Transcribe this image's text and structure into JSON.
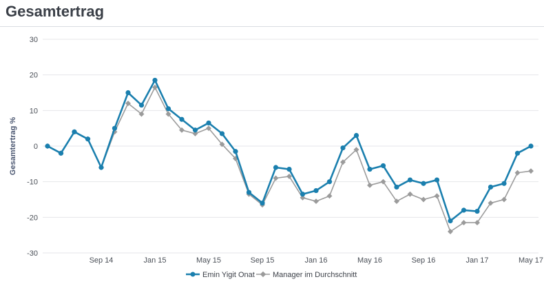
{
  "page": {
    "title": "Gesamtertrag"
  },
  "colors": {
    "primary": "#1a7fae",
    "secondary": "#9b9b9b",
    "grid": "#e4e6ea"
  },
  "chart_data": {
    "type": "line",
    "title": "Gesamtertrag",
    "xlabel": "",
    "ylabel": "Gesamtertrag %",
    "ylim": [
      -30,
      30
    ],
    "yticks": [
      30,
      20,
      10,
      0,
      -10,
      -20,
      -30
    ],
    "x_tick_labels": [
      "Sep 14",
      "Jan 15",
      "May 15",
      "Sep 15",
      "Jan 16",
      "May 16",
      "Sep 16",
      "Jan 17",
      "May 17"
    ],
    "x_tick_index": [
      4,
      8,
      12,
      16,
      20,
      24,
      28,
      32,
      36
    ],
    "grid": true,
    "legend_position": "bottom-center",
    "series": [
      {
        "name": "Emin Yigit Onat",
        "color": "#1a7fae",
        "marker": "circle",
        "values": [
          0,
          -2,
          4,
          2,
          -6,
          5,
          15,
          11.5,
          18.5,
          10.5,
          7.5,
          4.5,
          6.5,
          3.5,
          -1.5,
          -13,
          -16,
          -6,
          -6.5,
          -13.5,
          -12.5,
          -10,
          -0.5,
          3,
          -6.5,
          -5.5,
          -11.5,
          -9.5,
          -10.5,
          -9.5,
          -21,
          -18,
          -18.3,
          -11.5,
          -10.5,
          -2,
          0
        ]
      },
      {
        "name": "Manager im Durchschnitt",
        "color": "#9b9b9b",
        "marker": "diamond",
        "values": [
          0,
          -2,
          4,
          2,
          -6,
          4,
          12,
          9,
          16.5,
          9,
          4.5,
          3.5,
          5,
          0.5,
          -3.5,
          -13.5,
          -16.5,
          -9,
          -8.5,
          -14.5,
          -15.5,
          -14,
          -4.5,
          -1,
          -11,
          -10,
          -15.5,
          -13.5,
          -15,
          -14,
          -24,
          -21.5,
          -21.5,
          -16,
          -15,
          -7.5,
          -7
        ]
      }
    ]
  }
}
